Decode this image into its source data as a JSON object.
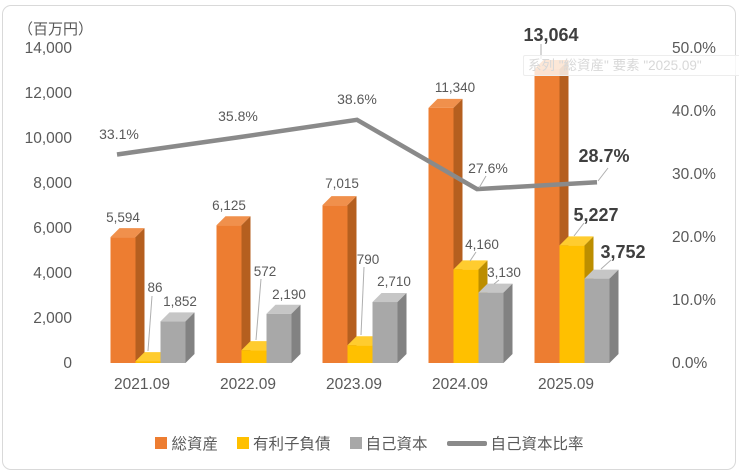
{
  "chart_data": {
    "type": "bar",
    "subtype": "3d-clustered-column-with-line-overlay",
    "unit_label": "（百万円）",
    "categories": [
      "2021.09",
      "2022.09",
      "2023.09",
      "2024.09",
      "2025.09"
    ],
    "series": [
      {
        "key": "total-assets",
        "name": "総資産",
        "type": "bar",
        "color": "#ED7D31",
        "color_top": "#F0904C",
        "color_side": "#B55F1F",
        "values": [
          5594,
          6125,
          7015,
          11340,
          13064
        ],
        "labels": [
          "5,594",
          "6,125",
          "7,015",
          "11,340",
          "13,064"
        ]
      },
      {
        "key": "interest-bearing-debt",
        "name": "有利子負債",
        "type": "bar",
        "color": "#FFC000",
        "color_top": "#FFCC2F",
        "color_side": "#BC8E00",
        "values": [
          86,
          572,
          790,
          4160,
          5227
        ],
        "labels": [
          "86",
          "572",
          "790",
          "4,160",
          "5,227"
        ]
      },
      {
        "key": "equity",
        "name": "自己資本",
        "type": "bar",
        "color": "#A8A8A8",
        "color_top": "#C6C6C6",
        "color_side": "#828282",
        "values": [
          1852,
          2190,
          2710,
          3130,
          3752
        ],
        "labels": [
          "1,852",
          "2,190",
          "2,710",
          "3,130",
          "3,752"
        ]
      },
      {
        "key": "equity-ratio",
        "name": "自己資本比率",
        "type": "line",
        "color": "#8A8A8A",
        "values": [
          33.1,
          35.8,
          38.6,
          27.6,
          28.7
        ],
        "labels": [
          "33.1%",
          "35.8%",
          "38.6%",
          "27.6%",
          "28.7%"
        ]
      }
    ],
    "left_axis": {
      "min": 0,
      "max": 14000,
      "step": 2000,
      "tick_labels": [
        "0",
        "2,000",
        "4,000",
        "6,000",
        "8,000",
        "10,000",
        "12,000",
        "14,000"
      ]
    },
    "right_axis": {
      "min": 0,
      "max": 50,
      "step": 10,
      "tick_labels": [
        "0.0%",
        "10.0%",
        "20.0%",
        "30.0%",
        "40.0%",
        "50.0%"
      ]
    },
    "grid": "off",
    "legend_position": "bottom",
    "emphasized_category": "2025.09"
  },
  "tooltip": {
    "text": "系列 \"総資産\" 要素 \"2025.09\""
  },
  "colors": {
    "axis_text": "#595959",
    "data_label": "#595959",
    "emphasis_label": "#3F3F3F",
    "line": "#8A8A8A",
    "leader": "#AFAFAF",
    "frame_border": "#D9D9D9",
    "tooltip_text": "#D8D8D8"
  }
}
